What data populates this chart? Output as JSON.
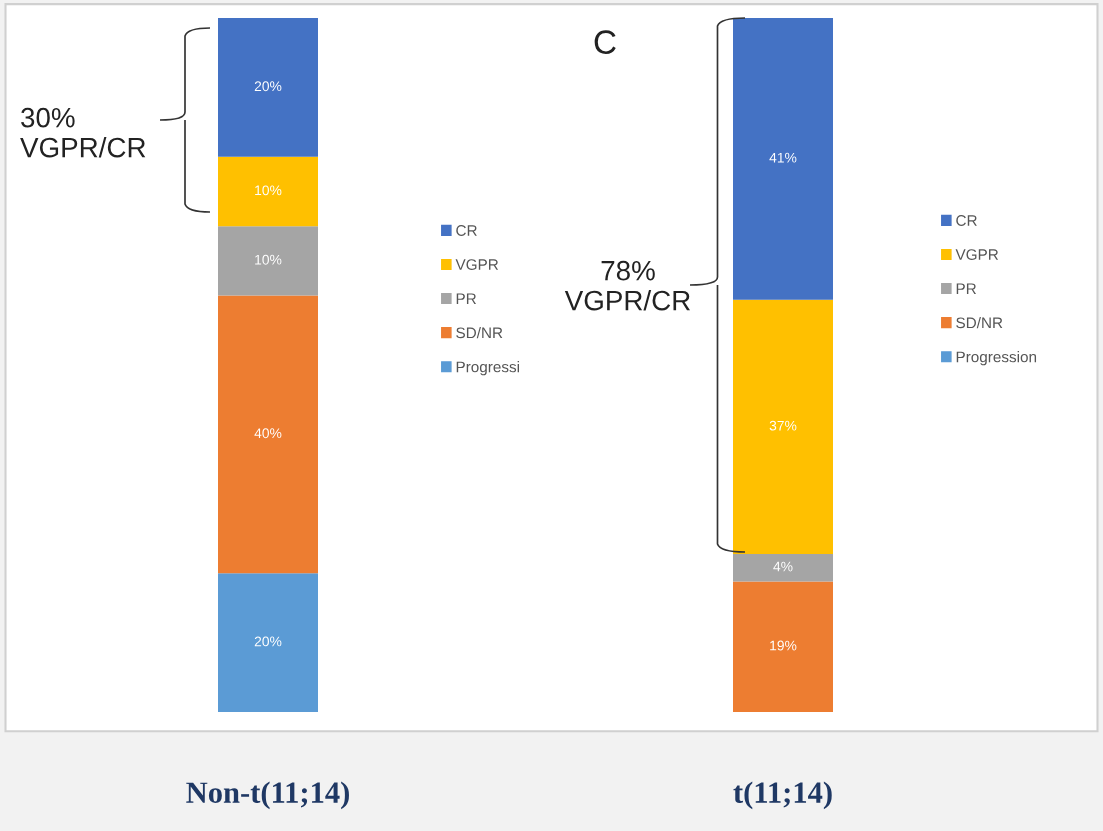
{
  "chart_data": [
    {
      "type": "bar",
      "stacked": true,
      "legend": "right",
      "categories": [
        "Non-t(11;14)"
      ],
      "annotations": [
        "30%\nVGPR/CR"
      ],
      "series": [
        {
          "name": "Progressi",
          "color": "#5b9bd5",
          "values": [
            20
          ],
          "value_labels": [
            "20%"
          ]
        },
        {
          "name": "SD/NR",
          "color": "#ed7d31",
          "values": [
            40
          ],
          "value_labels": [
            "40%"
          ]
        },
        {
          "name": "PR",
          "color": "#a5a5a5",
          "values": [
            10
          ],
          "value_labels": [
            "10%"
          ]
        },
        {
          "name": "VGPR",
          "color": "#ffc000",
          "values": [
            10
          ],
          "value_labels": [
            "10%"
          ]
        },
        {
          "name": "CR",
          "color": "#4472c4",
          "values": [
            20
          ],
          "value_labels": [
            "20%"
          ]
        }
      ]
    },
    {
      "type": "bar",
      "stacked": true,
      "legend": "right",
      "categories": [
        "t(11;14)"
      ],
      "annotations": [
        "C",
        "78%\nVGPR/CR"
      ],
      "series": [
        {
          "name": "Progression",
          "color": "#5b9bd5",
          "values": [
            null
          ],
          "value_labels": [
            null
          ]
        },
        {
          "name": "SD/NR",
          "color": "#ed7d31",
          "values": [
            19
          ],
          "value_labels": [
            "19%"
          ]
        },
        {
          "name": "PR",
          "color": "#a5a5a5",
          "values": [
            4
          ],
          "value_labels": [
            "4%"
          ]
        },
        {
          "name": "VGPR",
          "color": "#ffc000",
          "values": [
            37
          ],
          "value_labels": [
            "37%"
          ]
        },
        {
          "name": "CR",
          "color": "#4472c4",
          "values": [
            41
          ],
          "value_labels": [
            "41%"
          ]
        }
      ]
    }
  ]
}
